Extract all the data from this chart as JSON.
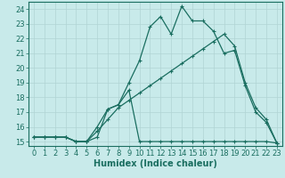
{
  "xlabel": "Humidex (Indice chaleur)",
  "ylabel": "",
  "bg_color": "#c8eaea",
  "grid_color": "#b0d4d4",
  "line_color": "#1a6e60",
  "xlim": [
    -0.5,
    23.5
  ],
  "ylim": [
    14.7,
    24.5
  ],
  "yticks": [
    15,
    16,
    17,
    18,
    19,
    20,
    21,
    22,
    23,
    24
  ],
  "xticks": [
    0,
    1,
    2,
    3,
    4,
    5,
    6,
    7,
    8,
    9,
    10,
    11,
    12,
    13,
    14,
    15,
    16,
    17,
    18,
    19,
    20,
    21,
    22,
    23
  ],
  "line1_x": [
    0,
    1,
    2,
    3,
    4,
    5,
    6,
    7,
    8,
    9,
    10,
    11,
    12,
    13,
    14,
    15,
    16,
    17,
    18,
    19,
    20,
    21,
    22,
    23
  ],
  "line1_y": [
    15.3,
    15.3,
    15.3,
    15.3,
    15.0,
    15.0,
    15.3,
    17.2,
    17.5,
    18.5,
    15.0,
    15.0,
    15.0,
    15.0,
    15.0,
    15.0,
    15.0,
    15.0,
    15.0,
    15.0,
    15.0,
    15.0,
    15.0,
    14.9
  ],
  "line2_x": [
    0,
    1,
    2,
    3,
    4,
    5,
    6,
    7,
    8,
    9,
    10,
    11,
    12,
    13,
    14,
    15,
    16,
    17,
    18,
    19,
    20,
    21,
    22,
    23
  ],
  "line2_y": [
    15.3,
    15.3,
    15.3,
    15.3,
    15.0,
    15.0,
    16.0,
    17.2,
    17.5,
    19.0,
    20.5,
    22.8,
    23.5,
    22.3,
    24.2,
    23.2,
    23.2,
    22.5,
    21.0,
    21.2,
    18.8,
    17.0,
    16.3,
    14.9
  ],
  "line3_x": [
    0,
    1,
    2,
    3,
    4,
    5,
    6,
    7,
    8,
    9,
    10,
    11,
    12,
    13,
    14,
    15,
    16,
    17,
    18,
    19,
    20,
    21,
    22,
    23
  ],
  "line3_y": [
    15.3,
    15.3,
    15.3,
    15.3,
    15.0,
    15.0,
    15.7,
    16.5,
    17.3,
    17.8,
    18.3,
    18.8,
    19.3,
    19.8,
    20.3,
    20.8,
    21.3,
    21.8,
    22.3,
    21.5,
    19.0,
    17.3,
    16.5,
    14.9
  ],
  "marker": "+",
  "marker_size": 3.5,
  "linewidth": 0.9,
  "xlabel_fontsize": 7,
  "tick_fontsize": 6
}
